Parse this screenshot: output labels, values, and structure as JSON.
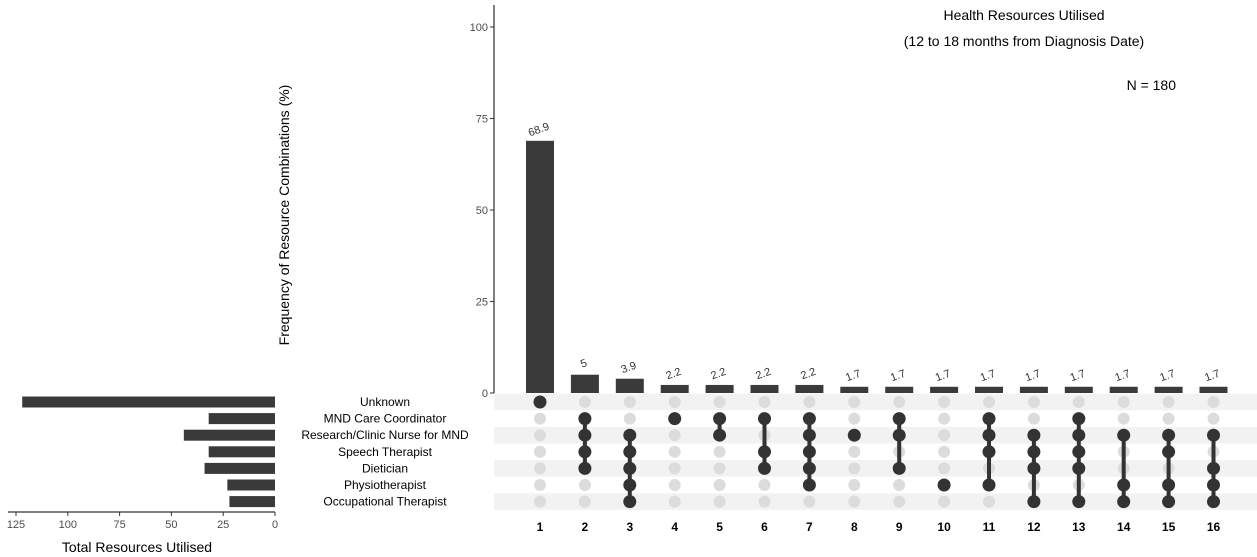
{
  "chart_data": {
    "type": "bar",
    "subtype": "upset",
    "title": "Health Resources Utilised",
    "subtitle": "(12 to 18 months from Diagnosis Date)",
    "annotation": "N = 180",
    "ylabel": "Frequency of Resource Combinations (%)",
    "ylim": [
      0,
      100
    ],
    "yticks": [
      "0",
      "25",
      "50",
      "75",
      "100"
    ],
    "categories": [
      "1",
      "2",
      "3",
      "4",
      "5",
      "6",
      "7",
      "8",
      "9",
      "10",
      "11",
      "12",
      "13",
      "14",
      "15",
      "16"
    ],
    "values": [
      68.9,
      5,
      3.9,
      2.2,
      2.2,
      2.2,
      2.2,
      1.7,
      1.7,
      1.7,
      1.7,
      1.7,
      1.7,
      1.7,
      1.7,
      1.7
    ],
    "value_labels": [
      "68.9",
      "5",
      "3.9",
      "2.2",
      "2.2",
      "2.2",
      "2.2",
      "1.7",
      "1.7",
      "1.7",
      "1.7",
      "1.7",
      "1.7",
      "1.7",
      "1.7",
      "1.7"
    ],
    "sets": [
      "Unknown",
      "MND Care Coordinator",
      "Research/Clinic Nurse for MND",
      "Speech Therapist",
      "Dietician",
      "Physiotherapist",
      "Occupational Therapist"
    ],
    "set_sizes": [
      122,
      32,
      44,
      32,
      34,
      23,
      22
    ],
    "set_size_xlabel": "Total Resources Utilised",
    "set_size_xlim": [
      0,
      125
    ],
    "set_size_ticks": [
      "125",
      "100",
      "75",
      "50",
      "25",
      "0"
    ],
    "membership": [
      [
        0
      ],
      [
        1,
        2,
        3,
        4
      ],
      [
        2,
        3,
        4,
        5,
        6
      ],
      [
        1
      ],
      [
        1,
        2
      ],
      [
        1,
        3,
        4
      ],
      [
        1,
        2,
        3,
        4,
        5
      ],
      [
        2
      ],
      [
        1,
        2,
        4
      ],
      [
        5
      ],
      [
        1,
        2,
        3,
        5
      ],
      [
        2,
        3,
        4,
        6
      ],
      [
        1,
        2,
        3,
        4,
        6
      ],
      [
        2,
        5,
        6
      ],
      [
        2,
        3,
        5,
        6
      ],
      [
        2,
        4,
        5,
        6
      ]
    ],
    "colors": {
      "bar": "#3a3a3a",
      "dot_active": "#333333",
      "dot_inactive": "#dcdcdc",
      "row_shade": "#f2f2f2",
      "axis": "#000000"
    }
  }
}
